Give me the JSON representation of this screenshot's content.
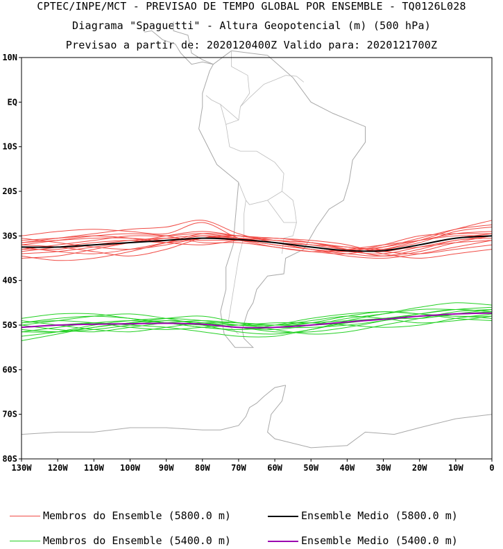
{
  "titles": {
    "line1": "CPTEC/INPE/MCT - PREVISAO DE TEMPO GLOBAL POR ENSEMBLE - TQ0126L028",
    "line2": "Diagrama \"Spaguetti\" - Altura Geopotencial (m) (500 hPa)",
    "line3": "Previsao a partir de: 2020120400Z  Valido para: 2020121700Z"
  },
  "colors": {
    "red_member": "#f04a44",
    "green_member": "#22d022",
    "ensemble_mean_5800": "#000000",
    "ensemble_mean_5400": "#9b00b0",
    "coastline": "#a8a8a8"
  },
  "chart_data": {
    "type": "line",
    "xlabel": "",
    "ylabel": "",
    "xlim": [
      -130,
      0
    ],
    "ylim": [
      -80,
      10
    ],
    "x_ticks": [
      {
        "value": -130,
        "label": "130W"
      },
      {
        "value": -120,
        "label": "120W"
      },
      {
        "value": -110,
        "label": "110W"
      },
      {
        "value": -100,
        "label": "100W"
      },
      {
        "value": -90,
        "label": "90W"
      },
      {
        "value": -80,
        "label": "80W"
      },
      {
        "value": -70,
        "label": "70W"
      },
      {
        "value": -60,
        "label": "60W"
      },
      {
        "value": -50,
        "label": "50W"
      },
      {
        "value": -40,
        "label": "40W"
      },
      {
        "value": -30,
        "label": "30W"
      },
      {
        "value": -20,
        "label": "20W"
      },
      {
        "value": -10,
        "label": "10W"
      },
      {
        "value": 0,
        "label": "0"
      }
    ],
    "y_ticks": [
      {
        "value": 10,
        "label": "10N"
      },
      {
        "value": 0,
        "label": "EQ"
      },
      {
        "value": -10,
        "label": "10S"
      },
      {
        "value": -20,
        "label": "20S"
      },
      {
        "value": -30,
        "label": "30S"
      },
      {
        "value": -40,
        "label": "40S"
      },
      {
        "value": -50,
        "label": "50S"
      },
      {
        "value": -60,
        "label": "60S"
      },
      {
        "value": -70,
        "label": "70S"
      },
      {
        "value": -80,
        "label": "80S"
      }
    ],
    "x": [
      -130,
      -120,
      -110,
      -100,
      -90,
      -80,
      -70,
      -60,
      -50,
      -40,
      -30,
      -20,
      -10,
      0
    ],
    "series_5800_members": [
      [
        -31.5,
        -31.0,
        -30.5,
        -30.5,
        -31.0,
        -30.5,
        -30.0,
        -31.0,
        -32.0,
        -33.0,
        -32.5,
        -31.0,
        -30.0,
        -30.0
      ],
      [
        -33.0,
        -32.0,
        -31.0,
        -30.0,
        -30.0,
        -29.5,
        -30.5,
        -31.5,
        -32.5,
        -33.5,
        -34.0,
        -32.5,
        -31.0,
        -30.0
      ],
      [
        -34.0,
        -33.5,
        -32.5,
        -31.5,
        -30.5,
        -30.0,
        -31.0,
        -32.5,
        -33.5,
        -33.0,
        -32.0,
        -31.0,
        -29.5,
        -29.0
      ],
      [
        -30.0,
        -29.0,
        -28.5,
        -29.0,
        -29.5,
        -27.0,
        -30.5,
        -32.0,
        -33.0,
        -34.5,
        -35.0,
        -34.0,
        -32.5,
        -31.0
      ],
      [
        -32.5,
        -33.5,
        -34.0,
        -33.0,
        -31.5,
        -30.0,
        -30.5,
        -31.5,
        -32.0,
        -32.5,
        -33.5,
        -34.0,
        -33.0,
        -32.0
      ],
      [
        -31.0,
        -30.5,
        -30.0,
        -30.5,
        -31.5,
        -32.0,
        -31.0,
        -30.5,
        -31.5,
        -33.0,
        -33.5,
        -32.0,
        -30.5,
        -29.5
      ],
      [
        -35.0,
        -34.5,
        -33.0,
        -31.5,
        -30.0,
        -29.0,
        -30.0,
        -31.0,
        -31.5,
        -33.0,
        -34.5,
        -33.5,
        -31.5,
        -30.0
      ],
      [
        -32.0,
        -31.0,
        -30.0,
        -29.5,
        -30.0,
        -31.5,
        -31.5,
        -32.5,
        -33.5,
        -34.0,
        -32.5,
        -30.5,
        -28.5,
        -27.5
      ],
      [
        -33.5,
        -32.5,
        -31.5,
        -31.0,
        -31.5,
        -30.5,
        -31.0,
        -31.5,
        -32.5,
        -33.5,
        -33.0,
        -31.5,
        -29.0,
        -28.0
      ],
      [
        -30.5,
        -31.5,
        -32.5,
        -33.0,
        -32.0,
        -30.5,
        -30.5,
        -31.0,
        -31.5,
        -32.5,
        -33.0,
        -32.5,
        -31.5,
        -31.0
      ],
      [
        -34.5,
        -35.5,
        -35.0,
        -33.5,
        -31.5,
        -29.5,
        -30.0,
        -30.5,
        -31.0,
        -32.0,
        -34.0,
        -35.0,
        -34.0,
        -33.0
      ],
      [
        -31.5,
        -30.5,
        -29.5,
        -28.5,
        -28.0,
        -26.5,
        -29.5,
        -31.5,
        -32.5,
        -33.5,
        -33.0,
        -31.0,
        -28.5,
        -26.5
      ],
      [
        -33.0,
        -33.0,
        -32.0,
        -31.0,
        -30.5,
        -31.0,
        -31.0,
        -32.0,
        -33.0,
        -33.5,
        -32.0,
        -30.0,
        -29.5,
        -29.5
      ],
      [
        -32.0,
        -32.5,
        -33.5,
        -34.5,
        -33.0,
        -30.5,
        -30.0,
        -31.5,
        -33.0,
        -34.0,
        -34.5,
        -33.0,
        -31.0,
        -30.5
      ]
    ],
    "series_5800_mean": [
      -32.5,
      -32.5,
      -32.0,
      -31.5,
      -31.0,
      -30.5,
      -30.8,
      -31.5,
      -32.5,
      -33.3,
      -33.3,
      -32.0,
      -30.5,
      -30.0
    ],
    "series_5400_members": [
      [
        -49.5,
        -48.5,
        -48.0,
        -48.5,
        -49.5,
        -50.5,
        -51.0,
        -50.5,
        -49.5,
        -48.0,
        -47.0,
        -47.5,
        -48.5,
        -49.0
      ],
      [
        -51.0,
        -51.5,
        -51.0,
        -50.0,
        -49.0,
        -49.5,
        -50.5,
        -51.0,
        -50.0,
        -48.5,
        -47.5,
        -46.5,
        -46.5,
        -47.0
      ],
      [
        -50.0,
        -49.0,
        -48.0,
        -47.5,
        -48.5,
        -50.0,
        -51.5,
        -52.0,
        -51.0,
        -49.0,
        -47.5,
        -46.0,
        -45.0,
        -45.5
      ],
      [
        -52.5,
        -51.5,
        -50.0,
        -49.0,
        -48.5,
        -49.0,
        -50.0,
        -50.5,
        -50.5,
        -50.0,
        -49.0,
        -48.0,
        -47.5,
        -47.0
      ],
      [
        -49.0,
        -50.0,
        -51.0,
        -51.5,
        -50.5,
        -49.5,
        -49.5,
        -50.0,
        -50.0,
        -49.5,
        -48.5,
        -48.0,
        -48.0,
        -48.5
      ],
      [
        -51.5,
        -50.5,
        -49.5,
        -49.0,
        -49.5,
        -50.5,
        -51.0,
        -50.0,
        -48.5,
        -47.5,
        -47.0,
        -47.5,
        -48.0,
        -48.0
      ],
      [
        -50.5,
        -50.0,
        -49.5,
        -50.0,
        -50.5,
        -51.5,
        -52.5,
        -52.5,
        -51.0,
        -49.5,
        -48.5,
        -48.5,
        -47.5,
        -46.5
      ],
      [
        -53.5,
        -52.0,
        -50.5,
        -49.5,
        -49.0,
        -49.5,
        -50.0,
        -50.0,
        -49.5,
        -49.0,
        -48.5,
        -47.5,
        -46.5,
        -46.0
      ],
      [
        -48.5,
        -47.5,
        -47.5,
        -48.5,
        -49.5,
        -50.0,
        -50.5,
        -51.5,
        -51.5,
        -50.5,
        -49.0,
        -47.5,
        -46.5,
        -47.0
      ],
      [
        -50.0,
        -51.0,
        -51.5,
        -50.5,
        -49.5,
        -49.0,
        -49.5,
        -50.0,
        -49.0,
        -48.0,
        -48.5,
        -49.5,
        -49.0,
        -48.0
      ],
      [
        -49.5,
        -49.0,
        -49.5,
        -50.5,
        -51.0,
        -50.5,
        -50.0,
        -49.5,
        -49.5,
        -50.0,
        -50.5,
        -50.0,
        -48.5,
        -47.5
      ],
      [
        -51.5,
        -51.5,
        -50.5,
        -49.5,
        -48.5,
        -48.0,
        -49.5,
        -51.0,
        -52.0,
        -51.5,
        -50.0,
        -48.5,
        -47.0,
        -46.5
      ]
    ],
    "series_5400_mean": [
      -50.5,
      -50.0,
      -49.8,
      -49.7,
      -49.6,
      -49.8,
      -50.5,
      -50.5,
      -50.0,
      -49.3,
      -48.7,
      -48.0,
      -47.5,
      -47.3
    ]
  },
  "legend": {
    "item1": "Membros do Ensemble (5800.0 m)",
    "item2": "Ensemble Medio (5800.0 m)",
    "item3": "Membros do Ensemble (5400.0 m)",
    "item4": "Ensemble Medio (5400.0 m)"
  }
}
